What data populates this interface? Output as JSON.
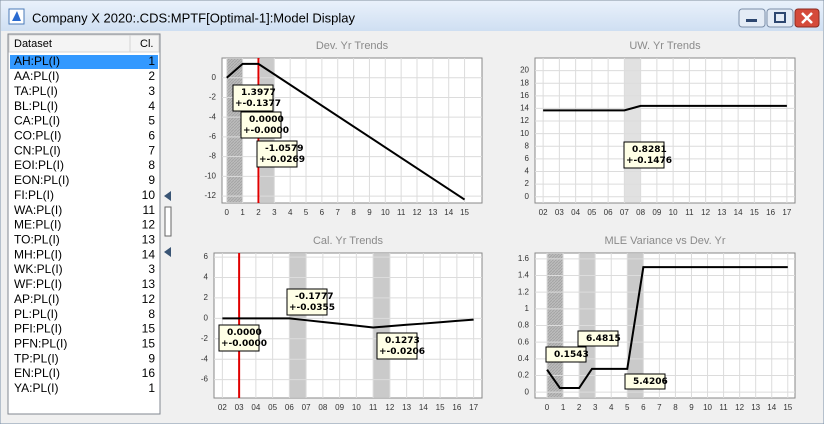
{
  "window": {
    "title": "Company X 2020:.CDS:MPTF[Optimal-1]:Model Display"
  },
  "list": {
    "headers": [
      "Dataset",
      "Cl."
    ],
    "rows": [
      [
        "AH:PL(I)",
        1
      ],
      [
        "AA:PL(I)",
        2
      ],
      [
        "TA:PL(I)",
        3
      ],
      [
        "BL:PL(I)",
        4
      ],
      [
        "CA:PL(I)",
        5
      ],
      [
        "CO:PL(I)",
        6
      ],
      [
        "CN:PL(I)",
        7
      ],
      [
        "EOI:PL(I)",
        8
      ],
      [
        "EON:PL(I)",
        9
      ],
      [
        "FI:PL(I)",
        10
      ],
      [
        "WA:PL(I)",
        11
      ],
      [
        "ME:PL(I)",
        12
      ],
      [
        "TO:PL(I)",
        13
      ],
      [
        "MH:PL(I)",
        14
      ],
      [
        "WK:PL(I)",
        3
      ],
      [
        "WF:PL(I)",
        13
      ],
      [
        "AP:PL(I)",
        12
      ],
      [
        "PL:PL(I)",
        8
      ],
      [
        "PFI:PL(I)",
        15
      ],
      [
        "PFN:PL(I)",
        15
      ],
      [
        "TP:PL(I)",
        9
      ],
      [
        "EN:PL(I)",
        16
      ],
      [
        "YA:PL(I)",
        1
      ]
    ]
  },
  "chart_data": [
    {
      "type": "line",
      "title": "Dev. Yr Trends",
      "color": "#000000",
      "grid": true,
      "x": [
        0,
        1,
        2,
        15
      ],
      "values": [
        0,
        1.4,
        1.4,
        -12.35
      ],
      "xlim": [
        -0.3,
        16.1
      ],
      "xticks": [
        0,
        1,
        2,
        3,
        4,
        5,
        6,
        7,
        8,
        9,
        10,
        11,
        12,
        13,
        14,
        15
      ],
      "ylim": [
        -12.7,
        2.0
      ],
      "yticks": [
        0,
        -2,
        -4,
        -6,
        -8,
        -10,
        -12
      ],
      "bands": [
        [
          0,
          1
        ],
        [
          2.1,
          3
        ]
      ],
      "marker": 2,
      "marker_color": "#e00000",
      "annotations": [
        [
          "1.3977",
          "+-0.1377"
        ],
        [
          "0.0000",
          "+-0.0000"
        ],
        [
          "-1.0579",
          "+-0.0269"
        ]
      ]
    },
    {
      "type": "line",
      "title": "UW. Yr Trends",
      "color": "#000000",
      "grid": true,
      "categories": [
        "02",
        "03",
        "04",
        "05",
        "06",
        "07",
        "08",
        "09",
        "10",
        "11",
        "12",
        "13",
        "14",
        "15",
        "16",
        "17"
      ],
      "values": [
        13.7,
        13.7,
        13.7,
        13.7,
        13.7,
        13.7,
        14.4,
        14.4,
        14.4,
        14.4,
        14.4,
        14.4,
        14.4,
        14.4,
        14.4,
        14.4
      ],
      "ylim": [
        -1,
        22
      ],
      "yticks": [
        0,
        2,
        4,
        6,
        8,
        10,
        12,
        14,
        16,
        18,
        20
      ],
      "bands": [
        [
          "07",
          "08"
        ]
      ],
      "annotations": [
        [
          "0.8281",
          "+-0.1476"
        ]
      ]
    },
    {
      "type": "line",
      "title": "Cal. Yr Trends",
      "color": "#000000",
      "grid": true,
      "categories": [
        "02",
        "03",
        "04",
        "05",
        "06",
        "07",
        "08",
        "09",
        "10",
        "11",
        "12",
        "13",
        "14",
        "15",
        "16",
        "17"
      ],
      "values": [
        0,
        0,
        0,
        0,
        0,
        -0.18,
        -0.36,
        -0.53,
        -0.71,
        -0.89,
        -0.76,
        -0.63,
        -0.51,
        -0.38,
        -0.25,
        -0.13
      ],
      "ylim": [
        -7.8,
        6.4
      ],
      "yticks": [
        6,
        4,
        2,
        0,
        -2,
        -4,
        -6
      ],
      "bands": [
        [
          "06",
          "07"
        ],
        [
          "11",
          "12"
        ]
      ],
      "marker": "03",
      "marker_color": "#e00000",
      "annotations": [
        [
          "-0.1777",
          "+-0.0355"
        ],
        [
          "0.0000",
          "+-0.0000"
        ],
        [
          "0.1273",
          "+-0.0206"
        ]
      ]
    },
    {
      "type": "line",
      "title": "MLE Variance vs Dev. Yr",
      "color": "#000000",
      "grid": true,
      "x": [
        0,
        0.8,
        2,
        2.8,
        5,
        6,
        15
      ],
      "values": [
        0.27,
        0.05,
        0.05,
        0.28,
        0.28,
        1.5,
        1.5
      ],
      "xlim": [
        -0.75,
        15.45
      ],
      "xticks": [
        0,
        1,
        2,
        3,
        4,
        5,
        6,
        7,
        8,
        9,
        10,
        11,
        12,
        13,
        14,
        15
      ],
      "ylim": [
        -0.07,
        1.67
      ],
      "yticks": [
        0,
        0.2,
        0.4,
        0.6,
        0.8,
        1,
        1.2,
        1.4,
        1.6
      ],
      "bands": [
        [
          0,
          1
        ],
        [
          2,
          3
        ],
        [
          5,
          6
        ]
      ],
      "annotations": [
        [
          "0.1543"
        ],
        [
          "6.4815"
        ],
        [
          "5.4206"
        ]
      ]
    }
  ]
}
